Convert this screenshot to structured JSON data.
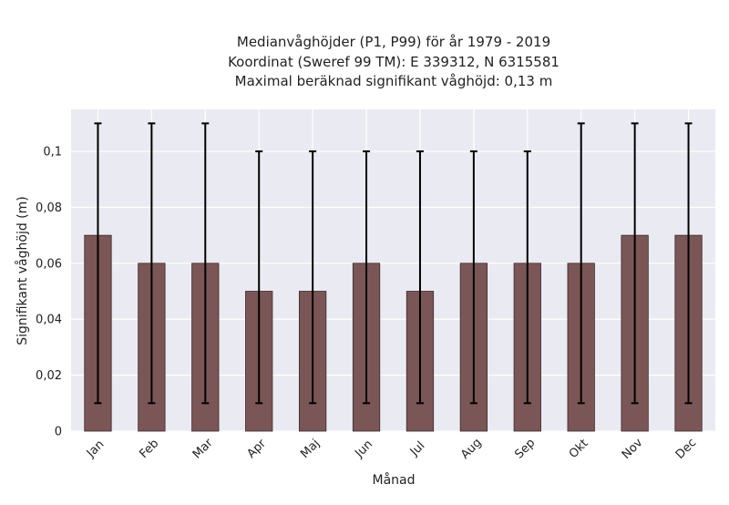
{
  "chart_data": {
    "type": "bar",
    "title_lines": [
      "Medianvåghöjder (P1, P99) för år 1979 - 2019",
      "Koordinat (Sweref 99 TM): E 339312, N 6315581",
      "Maximal beräknad signifikant våghöjd: 0,13 m"
    ],
    "xlabel": "Månad",
    "ylabel": "Signifikant våghöjd (m)",
    "categories": [
      "Jan",
      "Feb",
      "Mar",
      "Apr",
      "Maj",
      "Jun",
      "Jul",
      "Aug",
      "Sep",
      "Okt",
      "Nov",
      "Dec"
    ],
    "values": [
      0.07,
      0.06,
      0.06,
      0.05,
      0.05,
      0.06,
      0.05,
      0.06,
      0.06,
      0.06,
      0.07,
      0.07
    ],
    "error_low": [
      0.01,
      0.01,
      0.01,
      0.01,
      0.01,
      0.01,
      0.01,
      0.01,
      0.01,
      0.01,
      0.01,
      0.01
    ],
    "error_high": [
      0.11,
      0.11,
      0.11,
      0.1,
      0.1,
      0.1,
      0.1,
      0.1,
      0.1,
      0.11,
      0.11,
      0.11
    ],
    "ylim": [
      0,
      0.115
    ],
    "yticks": [
      0,
      0.02,
      0.04,
      0.06,
      0.08,
      0.1
    ],
    "ytick_labels": [
      "0",
      "0,02",
      "0,04",
      "0,06",
      "0,08",
      "0,1"
    ],
    "grid": true,
    "colors": {
      "bar_fill": "#7a5656",
      "bar_edge": "#3d2a2a",
      "error_bar": "#000000",
      "plot_background": "#eaeaf2",
      "grid": "#ffffff"
    }
  }
}
